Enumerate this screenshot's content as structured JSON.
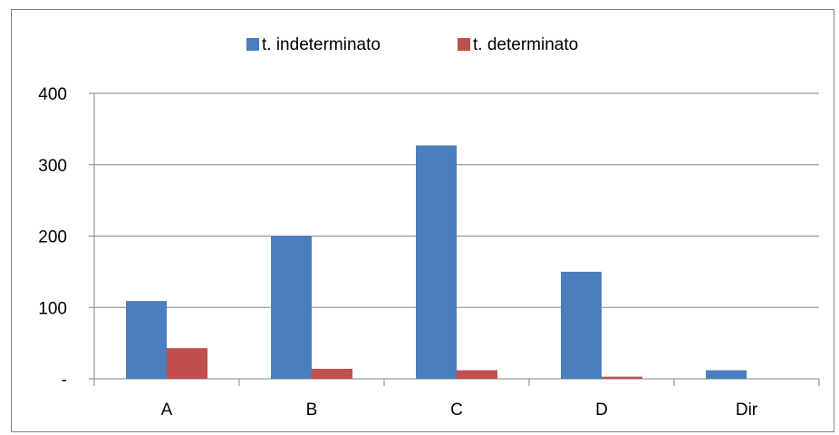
{
  "chart_data": {
    "type": "bar",
    "categories": [
      "A",
      "B",
      "C",
      "D",
      "Dir"
    ],
    "series": [
      {
        "name": "t. indeterminato",
        "color": "#4A7EBF",
        "values": [
          109,
          200,
          327,
          150,
          12
        ]
      },
      {
        "name": "t. determinato",
        "color": "#C0504D",
        "values": [
          43,
          14,
          12,
          3,
          0
        ]
      }
    ],
    "y_ticks": [
      {
        "value": 0,
        "label": "-"
      },
      {
        "value": 100,
        "label": "100"
      },
      {
        "value": 200,
        "label": "200"
      },
      {
        "value": 300,
        "label": "300"
      },
      {
        "value": 400,
        "label": "400"
      }
    ],
    "ylim": [
      0,
      400
    ],
    "title": "",
    "xlabel": "",
    "ylabel": "",
    "grid": true,
    "legend_position": "top-center",
    "gridline_color": "#868686"
  }
}
